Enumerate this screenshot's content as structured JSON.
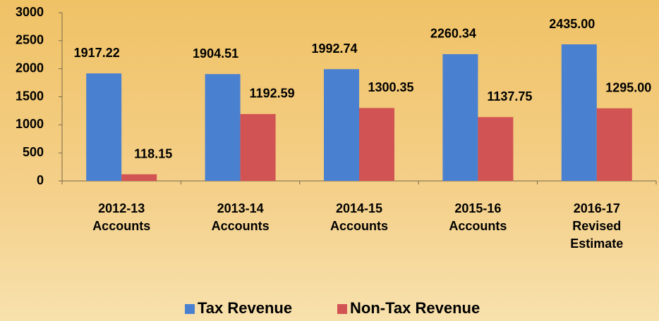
{
  "chart_data": {
    "type": "bar",
    "categories": [
      [
        "2012-13",
        "Accounts"
      ],
      [
        "2013-14",
        "Accounts"
      ],
      [
        "2014-15",
        "Accounts"
      ],
      [
        "2015-16",
        "Accounts"
      ],
      [
        "2016-17",
        "Revised",
        "Estimate"
      ]
    ],
    "series": [
      {
        "name": "Tax Revenue",
        "color": "#4a80d0",
        "values": [
          1917.22,
          1904.51,
          1992.74,
          2260.34,
          2435.0
        ],
        "value_labels": [
          "1917.22",
          "1904.51",
          "1992.74",
          "2260.34",
          "2435.00"
        ]
      },
      {
        "name": "Non-Tax Revenue",
        "color": "#d25353",
        "values": [
          118.15,
          1192.59,
          1300.35,
          1137.75,
          1295.0
        ],
        "value_labels": [
          "118.15",
          "1192.59",
          "1300.35",
          "1137.75",
          "1295.00"
        ]
      }
    ],
    "ylim": [
      0,
      3000
    ],
    "yticks": [
      0,
      500,
      1000,
      1500,
      2000,
      2500,
      3000
    ],
    "grid": false,
    "legend": "bottom"
  }
}
